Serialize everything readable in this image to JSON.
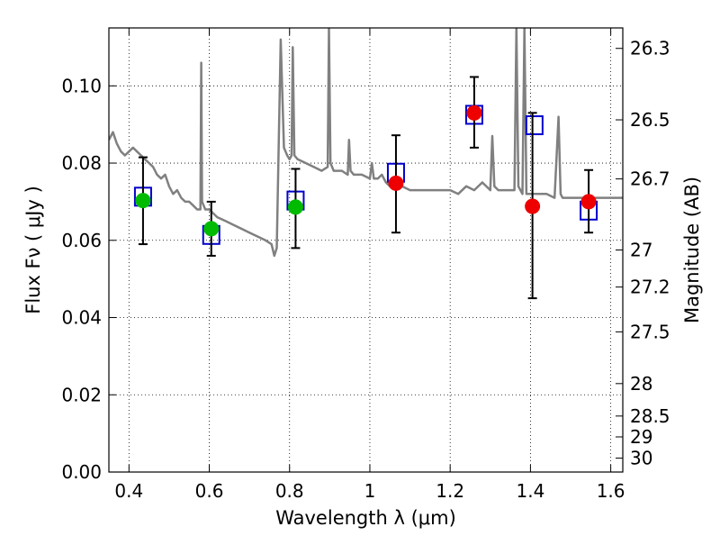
{
  "chart_data": {
    "type": "scatter",
    "xlabel": "Wavelength  λ (μm)",
    "ylabel": "Flux  Fν  ( μJy )",
    "y2label": "Magnitude (AB)",
    "xlim": [
      0.35,
      1.63
    ],
    "ylim": [
      0.0,
      0.115
    ],
    "grid": true,
    "x_ticks": [
      0.4,
      0.6,
      0.8,
      1.0,
      1.2,
      1.4,
      1.6
    ],
    "x_tick_labels": [
      "0.4",
      "0.6",
      "0.8",
      "1",
      "1.2",
      "1.4",
      "1.6"
    ],
    "y_ticks": [
      0.0,
      0.02,
      0.04,
      0.06,
      0.08,
      0.1
    ],
    "y_tick_labels": [
      "0.00",
      "0.02",
      "0.04",
      "0.06",
      "0.08",
      "0.10"
    ],
    "y2_ticks": [
      {
        "label": "26.3",
        "flux": 0.1097
      },
      {
        "label": "26.5",
        "flux": 0.0912
      },
      {
        "label": "26.7",
        "flux": 0.0759
      },
      {
        "label": "27",
        "flux": 0.0575
      },
      {
        "label": "27.2",
        "flux": 0.0479
      },
      {
        "label": "27.5",
        "flux": 0.0363
      },
      {
        "label": "28",
        "flux": 0.0229
      },
      {
        "label": "28.5",
        "flux": 0.0145
      },
      {
        "label": "29",
        "flux": 0.0091
      },
      {
        "label": "30",
        "flux": 0.0036
      }
    ],
    "series": [
      {
        "type": "errorbar",
        "color": "#00bb00",
        "points": [
          {
            "x": 0.435,
            "y": 0.0703,
            "ylo": 0.059,
            "yhi": 0.0815
          },
          {
            "x": 0.605,
            "y": 0.063,
            "ylo": 0.056,
            "yhi": 0.07
          },
          {
            "x": 0.815,
            "y": 0.0686,
            "ylo": 0.058,
            "yhi": 0.0785
          }
        ]
      },
      {
        "type": "errorbar",
        "color": "#ee0000",
        "points": [
          {
            "x": 1.065,
            "y": 0.0748,
            "ylo": 0.062,
            "yhi": 0.0872
          },
          {
            "x": 1.26,
            "y": 0.093,
            "ylo": 0.084,
            "yhi": 0.1023
          },
          {
            "x": 1.405,
            "y": 0.0688,
            "ylo": 0.045,
            "yhi": 0.093
          },
          {
            "x": 1.545,
            "y": 0.07,
            "ylo": 0.062,
            "yhi": 0.0782
          }
        ]
      },
      {
        "type": "model_squares",
        "color": "#0000cc",
        "points": [
          {
            "x": 0.435,
            "y": 0.0713
          },
          {
            "x": 0.605,
            "y": 0.0614
          },
          {
            "x": 0.815,
            "y": 0.0703
          },
          {
            "x": 1.065,
            "y": 0.0775
          },
          {
            "x": 1.26,
            "y": 0.0925
          },
          {
            "x": 1.41,
            "y": 0.0898
          },
          {
            "x": 1.545,
            "y": 0.0677
          }
        ]
      },
      {
        "type": "line",
        "color": "#808080",
        "x": [
          0.35,
          0.36,
          0.37,
          0.38,
          0.39,
          0.4,
          0.41,
          0.42,
          0.43,
          0.44,
          0.45,
          0.46,
          0.47,
          0.48,
          0.49,
          0.5,
          0.51,
          0.52,
          0.53,
          0.54,
          0.55,
          0.56,
          0.57,
          0.578,
          0.58,
          0.582,
          0.59,
          0.6,
          0.62,
          0.64,
          0.66,
          0.68,
          0.7,
          0.72,
          0.74,
          0.755,
          0.762,
          0.768,
          0.772,
          0.778,
          0.786,
          0.79,
          0.794,
          0.8,
          0.805,
          0.808,
          0.812,
          0.82,
          0.84,
          0.86,
          0.88,
          0.895,
          0.898,
          0.902,
          0.91,
          0.93,
          0.945,
          0.948,
          0.952,
          0.96,
          0.98,
          1.0,
          1.005,
          1.01,
          1.02,
          1.03,
          1.04,
          1.05,
          1.06,
          1.07,
          1.08,
          1.1,
          1.12,
          1.14,
          1.16,
          1.18,
          1.2,
          1.22,
          1.24,
          1.26,
          1.28,
          1.3,
          1.305,
          1.31,
          1.32,
          1.34,
          1.36,
          1.365,
          1.37,
          1.38,
          1.385,
          1.39,
          1.4,
          1.42,
          1.44,
          1.46,
          1.47,
          1.475,
          1.48,
          1.5,
          1.52,
          1.54,
          1.56,
          1.58,
          1.6,
          1.63
        ],
        "y": [
          0.086,
          0.088,
          0.085,
          0.083,
          0.082,
          0.083,
          0.084,
          0.083,
          0.082,
          0.081,
          0.08,
          0.079,
          0.077,
          0.076,
          0.077,
          0.074,
          0.072,
          0.073,
          0.071,
          0.07,
          0.07,
          0.069,
          0.068,
          0.068,
          0.106,
          0.07,
          0.068,
          0.068,
          0.066,
          0.065,
          0.064,
          0.063,
          0.062,
          0.061,
          0.06,
          0.059,
          0.056,
          0.058,
          0.08,
          0.112,
          0.084,
          0.083,
          0.082,
          0.081,
          0.082,
          0.11,
          0.082,
          0.081,
          0.08,
          0.079,
          0.078,
          0.079,
          0.115,
          0.08,
          0.078,
          0.078,
          0.077,
          0.086,
          0.078,
          0.077,
          0.077,
          0.076,
          0.08,
          0.076,
          0.076,
          0.077,
          0.075,
          0.074,
          0.074,
          0.074,
          0.074,
          0.073,
          0.073,
          0.073,
          0.073,
          0.073,
          0.073,
          0.072,
          0.074,
          0.073,
          0.075,
          0.073,
          0.087,
          0.074,
          0.073,
          0.073,
          0.073,
          0.115,
          0.074,
          0.072,
          0.115,
          0.072,
          0.072,
          0.072,
          0.072,
          0.071,
          0.092,
          0.072,
          0.071,
          0.071,
          0.071,
          0.071,
          0.071,
          0.071,
          0.071,
          0.071
        ]
      }
    ]
  }
}
